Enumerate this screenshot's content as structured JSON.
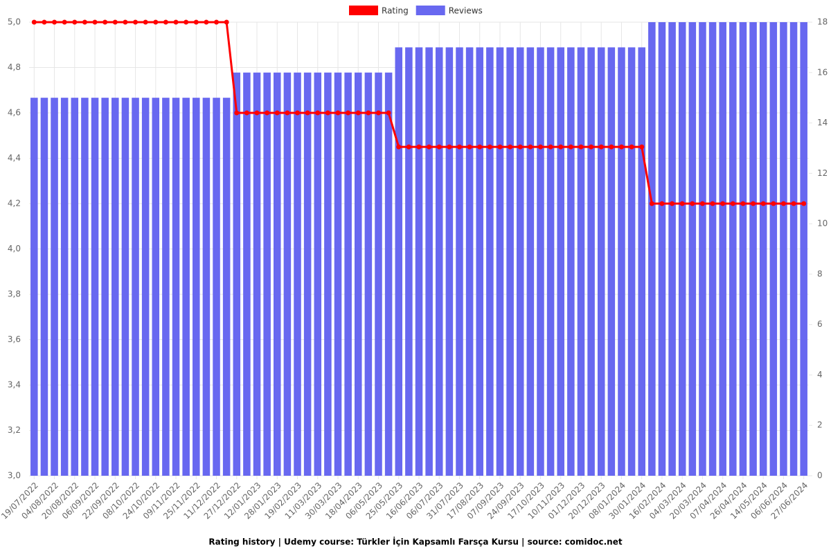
{
  "chart_data": {
    "type": "combo",
    "title": "Rating history | Udemy course: Türkler İçin Kapsamlı Farsça Kursu | source: comidoc.net",
    "categories": [
      "19/07/2022",
      null,
      "04/08/2022",
      null,
      "20/08/2022",
      null,
      "06/09/2022",
      null,
      "22/09/2022",
      null,
      "08/10/2022",
      null,
      "24/10/2022",
      null,
      "09/11/2022",
      null,
      "25/11/2022",
      null,
      "11/12/2022",
      null,
      "27/12/2022",
      null,
      "12/01/2023",
      null,
      "28/01/2023",
      null,
      "19/02/2023",
      null,
      "11/03/2023",
      null,
      "30/03/2023",
      null,
      "18/04/2023",
      null,
      "06/05/2023",
      null,
      "25/05/2023",
      null,
      "16/06/2023",
      null,
      "06/07/2023",
      null,
      "31/07/2023",
      null,
      "17/08/2023",
      null,
      "07/09/2023",
      null,
      "24/09/2023",
      null,
      "17/10/2023",
      null,
      "10/11/2023",
      null,
      "01/12/2023",
      null,
      "20/12/2023",
      null,
      "08/01/2024",
      null,
      "30/01/2024",
      null,
      "16/02/2024",
      null,
      "04/03/2024",
      null,
      "20/03/2024",
      null,
      "07/04/2024",
      null,
      "26/04/2024",
      null,
      "14/05/2024",
      null,
      "06/06/2024",
      null,
      "27/06/2024"
    ],
    "series": [
      {
        "name": "Rating",
        "type": "line",
        "color": "#ff0000",
        "axis": "y",
        "values": [
          5,
          5,
          5,
          5,
          5,
          5,
          5,
          5,
          5,
          5,
          5,
          5,
          5,
          5,
          5,
          5,
          5,
          5,
          5,
          5,
          4.6,
          4.6,
          4.6,
          4.6,
          4.6,
          4.6,
          4.6,
          4.6,
          4.6,
          4.6,
          4.6,
          4.6,
          4.6,
          4.6,
          4.6,
          4.6,
          4.45,
          4.45,
          4.45,
          4.45,
          4.45,
          4.45,
          4.45,
          4.45,
          4.45,
          4.45,
          4.45,
          4.45,
          4.45,
          4.45,
          4.45,
          4.45,
          4.45,
          4.45,
          4.45,
          4.45,
          4.45,
          4.45,
          4.45,
          4.45,
          4.45,
          4.2,
          4.2,
          4.2,
          4.2,
          4.2,
          4.2,
          4.2,
          4.2,
          4.2,
          4.2,
          4.2,
          4.2,
          4.2,
          4.2,
          4.2,
          4.2
        ]
      },
      {
        "name": "Reviews",
        "type": "bar",
        "color": "#6868f0",
        "axis": "y2",
        "values": [
          15,
          15,
          15,
          15,
          15,
          15,
          15,
          15,
          15,
          15,
          15,
          15,
          15,
          15,
          15,
          15,
          15,
          15,
          15,
          15,
          16,
          16,
          16,
          16,
          16,
          16,
          16,
          16,
          16,
          16,
          16,
          16,
          16,
          16,
          16,
          16,
          17,
          17,
          17,
          17,
          17,
          17,
          17,
          17,
          17,
          17,
          17,
          17,
          17,
          17,
          17,
          17,
          17,
          17,
          17,
          17,
          17,
          17,
          17,
          17,
          17,
          18,
          18,
          18,
          18,
          18,
          18,
          18,
          18,
          18,
          18,
          18,
          18,
          18,
          18,
          18,
          18
        ]
      }
    ],
    "ylim": [
      3,
      5
    ],
    "yticks": [
      {
        "value": 3,
        "label": "3,0"
      },
      {
        "value": 3.2,
        "label": "3,2"
      },
      {
        "value": 3.4,
        "label": "3,4"
      },
      {
        "value": 3.6,
        "label": "3,6"
      },
      {
        "value": 3.8,
        "label": "3,8"
      },
      {
        "value": 4,
        "label": "4,0"
      },
      {
        "value": 4.2,
        "label": "4,2"
      },
      {
        "value": 4.4,
        "label": "4,4"
      },
      {
        "value": 4.6,
        "label": "4,6"
      },
      {
        "value": 4.8,
        "label": "4,8"
      },
      {
        "value": 5,
        "label": "5,0"
      }
    ],
    "y2lim": [
      0,
      18
    ],
    "y2ticks": [
      0,
      2,
      4,
      6,
      8,
      10,
      12,
      14,
      16,
      18
    ],
    "grid": true,
    "legend": "top"
  }
}
